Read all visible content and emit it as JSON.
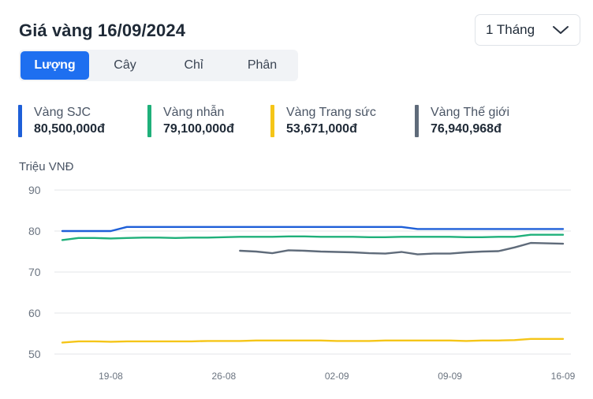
{
  "title": "Giá vàng 16/09/2024",
  "range_select": {
    "value": "1 Tháng"
  },
  "tabs": [
    {
      "label": "Lượng",
      "active": true
    },
    {
      "label": "Cây",
      "active": false
    },
    {
      "label": "Chỉ",
      "active": false
    },
    {
      "label": "Phân",
      "active": false
    }
  ],
  "legend": [
    {
      "name": "Vàng SJC",
      "value": "80,500,000đ",
      "color": "#1e5fd8"
    },
    {
      "name": "Vàng nhẫn",
      "value": "79,100,000đ",
      "color": "#1fb07a"
    },
    {
      "name": "Vàng Trang sức",
      "value": "53,671,000đ",
      "color": "#f5c518"
    },
    {
      "name": "Vàng Thế giới",
      "value": "76,940,968đ",
      "color": "#5f6b7a"
    }
  ],
  "chart_data": {
    "type": "line",
    "ylabel": "Triệu VNĐ",
    "ylim": [
      50,
      90
    ],
    "yticks": [
      50,
      60,
      70,
      80,
      90
    ],
    "x": [
      "2024-08-16",
      "2024-08-17",
      "2024-08-18",
      "2024-08-19",
      "2024-08-20",
      "2024-08-21",
      "2024-08-22",
      "2024-08-23",
      "2024-08-24",
      "2024-08-25",
      "2024-08-26",
      "2024-08-27",
      "2024-08-28",
      "2024-08-29",
      "2024-08-30",
      "2024-08-31",
      "2024-09-01",
      "2024-09-02",
      "2024-09-03",
      "2024-09-04",
      "2024-09-05",
      "2024-09-06",
      "2024-09-07",
      "2024-09-08",
      "2024-09-09",
      "2024-09-10",
      "2024-09-11",
      "2024-09-12",
      "2024-09-13",
      "2024-09-14",
      "2024-09-15",
      "2024-09-16"
    ],
    "xticks": [
      {
        "date": "2024-08-19",
        "label": "19-08"
      },
      {
        "date": "2024-08-26",
        "label": "26-08"
      },
      {
        "date": "2024-09-02",
        "label": "02-09"
      },
      {
        "date": "2024-09-09",
        "label": "09-09"
      },
      {
        "date": "2024-09-16",
        "label": "16-09"
      }
    ],
    "grid": true,
    "series": [
      {
        "name": "Vàng SJC",
        "color": "#1e5fd8",
        "values": [
          80.0,
          80.0,
          80.0,
          80.0,
          81.0,
          81.0,
          81.0,
          81.0,
          81.0,
          81.0,
          81.0,
          81.0,
          81.0,
          81.0,
          81.0,
          81.0,
          81.0,
          81.0,
          81.0,
          81.0,
          81.0,
          81.0,
          80.5,
          80.5,
          80.5,
          80.5,
          80.5,
          80.5,
          80.5,
          80.5,
          80.5,
          80.5
        ]
      },
      {
        "name": "Vàng nhẫn",
        "color": "#1fb07a",
        "values": [
          77.8,
          78.3,
          78.3,
          78.2,
          78.3,
          78.4,
          78.4,
          78.3,
          78.4,
          78.4,
          78.5,
          78.6,
          78.6,
          78.6,
          78.7,
          78.7,
          78.6,
          78.6,
          78.6,
          78.5,
          78.5,
          78.6,
          78.6,
          78.6,
          78.6,
          78.5,
          78.5,
          78.6,
          78.6,
          79.1,
          79.1,
          79.1
        ]
      },
      {
        "name": "Vàng Thế giới",
        "color": "#5f6b7a",
        "values": [
          null,
          null,
          null,
          null,
          null,
          null,
          null,
          null,
          null,
          null,
          null,
          75.2,
          75.0,
          74.6,
          75.3,
          75.2,
          75.0,
          74.9,
          74.8,
          74.6,
          74.5,
          74.9,
          74.3,
          74.5,
          74.5,
          74.8,
          75.0,
          75.1,
          76.0,
          77.1,
          77.0,
          76.9
        ]
      },
      {
        "name": "Vàng Trang sức",
        "color": "#f5c518",
        "values": [
          52.8,
          53.1,
          53.1,
          53.0,
          53.1,
          53.1,
          53.1,
          53.1,
          53.1,
          53.2,
          53.2,
          53.2,
          53.3,
          53.3,
          53.3,
          53.3,
          53.3,
          53.2,
          53.2,
          53.2,
          53.3,
          53.3,
          53.3,
          53.3,
          53.3,
          53.2,
          53.3,
          53.3,
          53.4,
          53.7,
          53.7,
          53.7
        ]
      }
    ]
  }
}
